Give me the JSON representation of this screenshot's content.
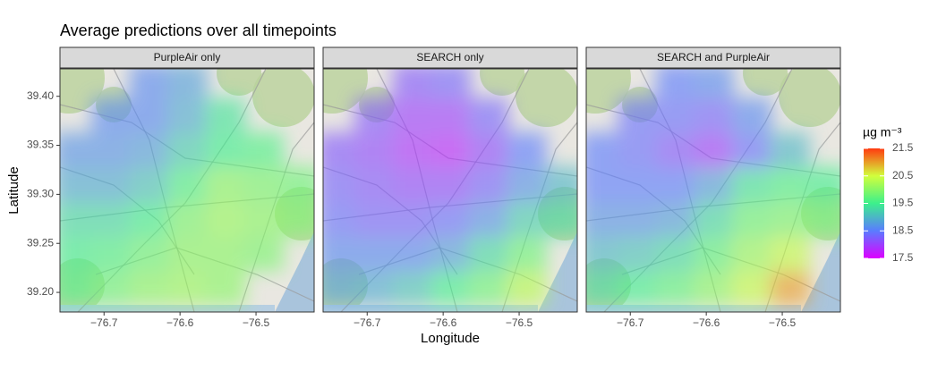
{
  "chart_data": {
    "type": "heatmap",
    "title": "Average predictions over all timepoints",
    "x_label": "Longitude",
    "y_label": "Latitude",
    "xlim": [
      -76.758,
      -76.4235
    ],
    "ylim": [
      39.18,
      39.428
    ],
    "xticks": [
      {
        "value": -76.7,
        "label": "−76.7"
      },
      {
        "value": -76.6,
        "label": "−76.6"
      },
      {
        "value": -76.5,
        "label": "−76.5"
      }
    ],
    "yticks": [
      {
        "value": 39.2,
        "label": "39.20"
      },
      {
        "value": 39.25,
        "label": "39.25"
      },
      {
        "value": 39.3,
        "label": "39.30"
      },
      {
        "value": 39.35,
        "label": "39.35"
      },
      {
        "value": 39.4,
        "label": "39.40"
      }
    ],
    "x": [
      -76.74,
      -76.69,
      -76.64,
      -76.59,
      -76.54,
      -76.49,
      -76.44
    ],
    "y": [
      39.205,
      39.24,
      39.275,
      39.31,
      39.345,
      39.38,
      39.415
    ],
    "panels": [
      {
        "title": "PurpleAir only",
        "z": [
          [
            19.6,
            19.8,
            20.0,
            20.1,
            20.0,
            null,
            null
          ],
          [
            19.5,
            19.6,
            19.8,
            20.0,
            20.0,
            19.9,
            null
          ],
          [
            19.3,
            19.3,
            19.5,
            19.9,
            20.1,
            20.0,
            19.9
          ],
          [
            18.9,
            18.9,
            19.1,
            19.6,
            20.0,
            19.9,
            19.8
          ],
          [
            18.7,
            18.7,
            18.8,
            19.2,
            19.5,
            19.6,
            null
          ],
          [
            null,
            18.6,
            18.6,
            18.9,
            19.4,
            null,
            null
          ],
          [
            null,
            null,
            18.6,
            18.8,
            null,
            null,
            null
          ]
        ]
      },
      {
        "title": "SEARCH only",
        "z": [
          [
            18.8,
            18.9,
            19.1,
            19.5,
            19.8,
            20.3,
            null
          ],
          [
            18.6,
            18.6,
            18.6,
            18.8,
            19.3,
            19.8,
            null
          ],
          [
            18.4,
            18.3,
            18.3,
            18.4,
            18.7,
            19.2,
            19.3
          ],
          [
            18.3,
            18.2,
            18.1,
            18.1,
            18.3,
            18.7,
            19.0
          ],
          [
            18.2,
            18.1,
            17.9,
            17.8,
            18.1,
            18.5,
            null
          ],
          [
            null,
            18.2,
            18.0,
            18.0,
            18.3,
            null,
            null
          ],
          [
            null,
            null,
            18.2,
            18.3,
            null,
            null,
            null
          ]
        ]
      },
      {
        "title": "SEARCH and PurpleAir",
        "z": [
          [
            19.3,
            19.5,
            19.7,
            20.0,
            20.4,
            21.0,
            null
          ],
          [
            19.0,
            19.1,
            19.3,
            19.7,
            20.1,
            20.4,
            null
          ],
          [
            18.7,
            18.7,
            18.8,
            19.3,
            19.8,
            19.9,
            19.8
          ],
          [
            18.5,
            18.5,
            18.5,
            18.8,
            19.4,
            19.6,
            19.5
          ],
          [
            18.5,
            18.4,
            18.2,
            18.0,
            18.4,
            19.0,
            null
          ],
          [
            null,
            18.4,
            18.4,
            18.3,
            18.6,
            null,
            null
          ],
          [
            null,
            null,
            18.5,
            18.6,
            null,
            null,
            null
          ]
        ]
      }
    ],
    "colorbar": {
      "title": "µg m⁻³",
      "lim": [
        17.5,
        21.5
      ],
      "ticks": [
        17.5,
        18.5,
        19.5,
        20.5,
        21.5
      ],
      "colors": [
        "#dd00ff",
        "#5a7cff",
        "#3cf08c",
        "#d2ff3c",
        "#ff3a10"
      ]
    }
  }
}
